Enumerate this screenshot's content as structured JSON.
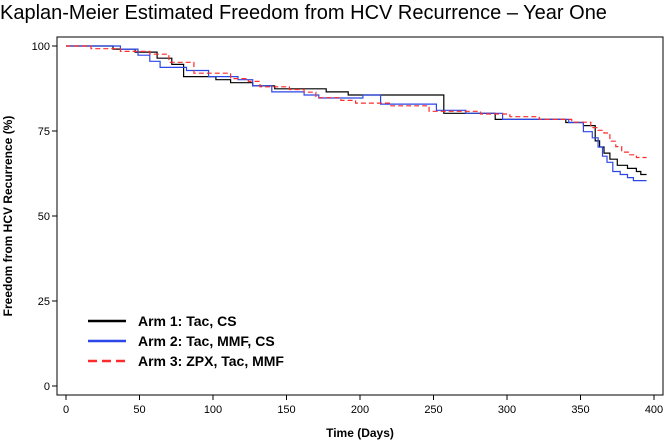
{
  "chart_data": {
    "type": "line",
    "title": "Kaplan-Meier Estimated Freedom from HCV Recurrence – Year One",
    "xlabel": "Time (Days)",
    "ylabel": "Freedom from HCV Recurrence (%)",
    "xlim": [
      -5,
      405
    ],
    "ylim": [
      -2,
      102
    ],
    "x_ticks": [
      0,
      50,
      100,
      150,
      200,
      250,
      300,
      350,
      400
    ],
    "y_ticks": [
      0,
      25,
      50,
      75,
      100
    ],
    "grid": false,
    "legend_position": "bottom-left",
    "step": true,
    "series": [
      {
        "name": "Arm 1: Tac, CS",
        "color": "#000000",
        "dash": "solid",
        "points": [
          [
            0,
            100
          ],
          [
            30,
            100
          ],
          [
            32,
            99.1
          ],
          [
            45,
            99.1
          ],
          [
            47,
            98.2
          ],
          [
            60,
            98.2
          ],
          [
            62,
            96.4
          ],
          [
            70,
            96.4
          ],
          [
            72,
            94.6
          ],
          [
            78,
            94.6
          ],
          [
            80,
            91.0
          ],
          [
            100,
            91.0
          ],
          [
            102,
            90.1
          ],
          [
            110,
            90.1
          ],
          [
            112,
            89.2
          ],
          [
            125,
            89.2
          ],
          [
            127,
            88.3
          ],
          [
            140,
            88.3
          ],
          [
            142,
            87.4
          ],
          [
            175,
            87.4
          ],
          [
            177,
            86.5
          ],
          [
            190,
            86.5
          ],
          [
            192,
            85.6
          ],
          [
            255,
            85.6
          ],
          [
            257,
            80.2
          ],
          [
            290,
            80.2
          ],
          [
            292,
            78.4
          ],
          [
            338,
            78.4
          ],
          [
            340,
            77.5
          ],
          [
            350,
            77.5
          ],
          [
            352,
            76.6
          ],
          [
            358,
            76.6
          ],
          [
            360,
            72.1
          ],
          [
            363,
            70.3
          ],
          [
            366,
            68.5
          ],
          [
            370,
            66.7
          ],
          [
            375,
            64.9
          ],
          [
            382,
            64.0
          ],
          [
            388,
            63.1
          ],
          [
            391,
            62.2
          ],
          [
            395,
            62.2
          ]
        ]
      },
      {
        "name": "Arm 2: Tac, MMF, CS",
        "color": "#2b47e8",
        "dash": "solid",
        "points": [
          [
            0,
            100
          ],
          [
            35,
            100
          ],
          [
            37,
            99.1
          ],
          [
            47,
            99.1
          ],
          [
            49,
            97.3
          ],
          [
            55,
            97.3
          ],
          [
            57,
            95.5
          ],
          [
            62,
            95.5
          ],
          [
            64,
            93.7
          ],
          [
            80,
            93.7
          ],
          [
            82,
            92.8
          ],
          [
            95,
            92.8
          ],
          [
            97,
            91.0
          ],
          [
            115,
            91.0
          ],
          [
            117,
            90.1
          ],
          [
            125,
            90.1
          ],
          [
            127,
            88.3
          ],
          [
            138,
            88.3
          ],
          [
            140,
            86.5
          ],
          [
            160,
            86.5
          ],
          [
            162,
            85.6
          ],
          [
            170,
            85.6
          ],
          [
            172,
            84.7
          ],
          [
            200,
            84.7
          ],
          [
            202,
            85.6
          ],
          [
            212,
            85.6
          ],
          [
            214,
            82.9
          ],
          [
            250,
            82.9
          ],
          [
            252,
            81.1
          ],
          [
            270,
            81.1
          ],
          [
            272,
            80.2
          ],
          [
            295,
            80.2
          ],
          [
            297,
            78.4
          ],
          [
            340,
            78.4
          ],
          [
            342,
            77.5
          ],
          [
            350,
            77.5
          ],
          [
            352,
            74.8
          ],
          [
            358,
            73.0
          ],
          [
            362,
            70.3
          ],
          [
            365,
            67.6
          ],
          [
            368,
            65.8
          ],
          [
            372,
            63.1
          ],
          [
            377,
            62.2
          ],
          [
            382,
            61.3
          ],
          [
            386,
            60.4
          ],
          [
            395,
            60.4
          ]
        ]
      },
      {
        "name": "Arm 3: ZPX, Tac, MMF",
        "color": "#ff2a2a",
        "dash": "dashed",
        "points": [
          [
            0,
            100
          ],
          [
            15,
            100
          ],
          [
            17,
            99.2
          ],
          [
            35,
            99.2
          ],
          [
            37,
            98.4
          ],
          [
            55,
            98.4
          ],
          [
            57,
            97.6
          ],
          [
            68,
            97.6
          ],
          [
            70,
            95.2
          ],
          [
            85,
            95.2
          ],
          [
            87,
            92.0
          ],
          [
            110,
            92.0
          ],
          [
            112,
            90.4
          ],
          [
            122,
            90.4
          ],
          [
            124,
            89.6
          ],
          [
            130,
            89.6
          ],
          [
            132,
            88.0
          ],
          [
            150,
            88.0
          ],
          [
            152,
            87.2
          ],
          [
            160,
            87.2
          ],
          [
            162,
            86.4
          ],
          [
            168,
            86.4
          ],
          [
            170,
            84.8
          ],
          [
            185,
            84.8
          ],
          [
            187,
            84.0
          ],
          [
            195,
            84.0
          ],
          [
            197,
            83.2
          ],
          [
            218,
            83.2
          ],
          [
            220,
            82.4
          ],
          [
            245,
            82.4
          ],
          [
            247,
            80.8
          ],
          [
            280,
            80.8
          ],
          [
            282,
            80.0
          ],
          [
            300,
            80.0
          ],
          [
            302,
            79.2
          ],
          [
            320,
            79.2
          ],
          [
            322,
            78.4
          ],
          [
            342,
            78.4
          ],
          [
            344,
            77.6
          ],
          [
            355,
            77.6
          ],
          [
            357,
            76.0
          ],
          [
            362,
            75.2
          ],
          [
            366,
            74.4
          ],
          [
            370,
            72.0
          ],
          [
            374,
            70.4
          ],
          [
            378,
            68.8
          ],
          [
            383,
            68.0
          ],
          [
            388,
            67.2
          ],
          [
            395,
            67.2
          ]
        ]
      }
    ]
  }
}
